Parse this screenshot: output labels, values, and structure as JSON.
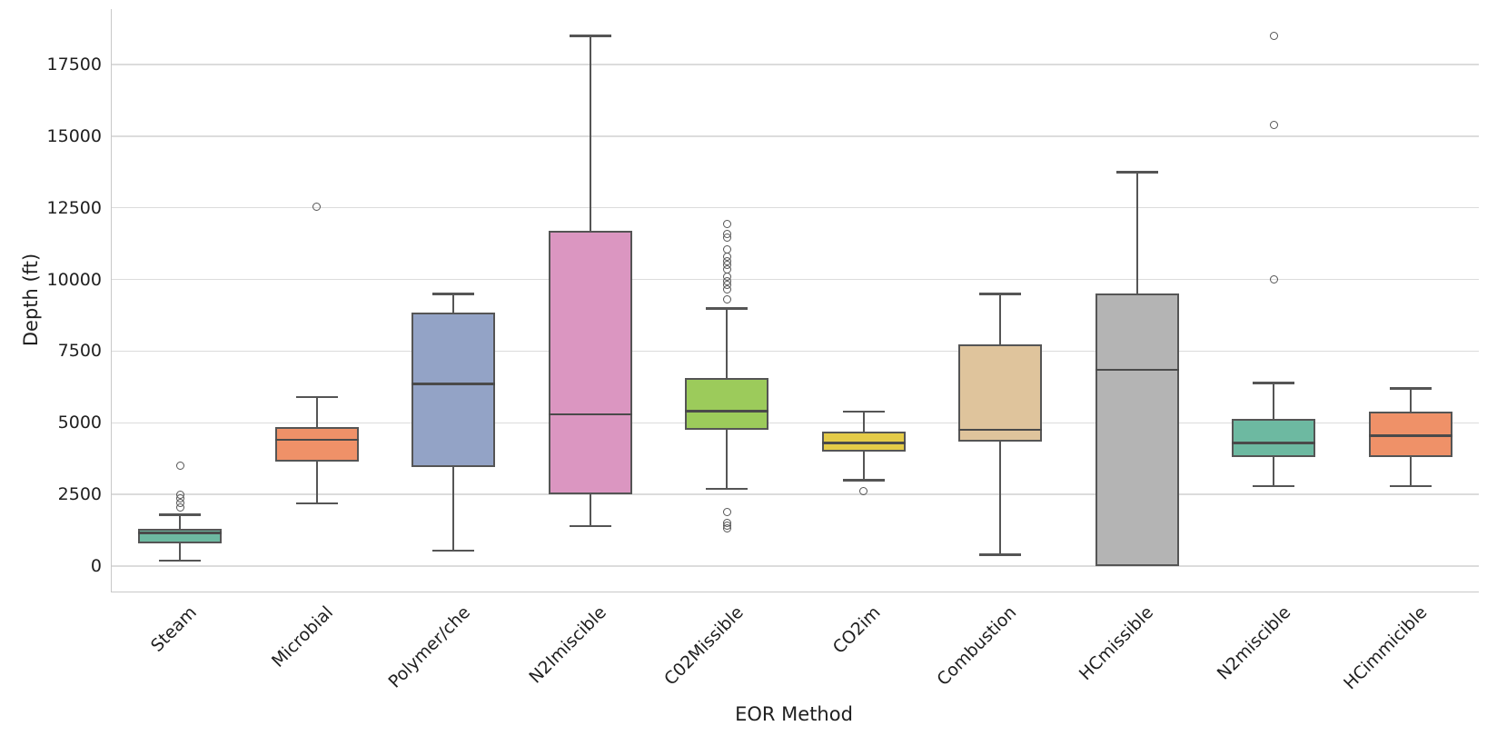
{
  "axes": {
    "xlabel": "EOR Method",
    "ylabel": "Depth (ft)"
  },
  "chart_data": {
    "type": "box",
    "title": "",
    "xlabel": "EOR Method",
    "ylabel": "Depth (ft)",
    "y_ticks": [
      0,
      2500,
      5000,
      7500,
      10000,
      12500,
      15000,
      17500
    ],
    "ylim": [
      -890,
      19430
    ],
    "grid": "horizontal",
    "legend": "none",
    "categories": [
      "Steam",
      "Microbial",
      "Polymer/che",
      "N2Imiscible",
      "C02Missible",
      "CO2im",
      "Combustion",
      "HCmissible",
      "N2miscible",
      "HCimmicible"
    ],
    "series": [
      {
        "name": "Steam",
        "color": "#6db9a1",
        "whisker_low": 200,
        "q1": 800,
        "median": 1150,
        "q3": 1300,
        "whisker_high": 1800,
        "outliers": [
          2050,
          2200,
          2350,
          2500,
          3500
        ]
      },
      {
        "name": "Microbial",
        "color": "#ef9168",
        "whisker_low": 2200,
        "q1": 3650,
        "median": 4400,
        "q3": 4850,
        "whisker_high": 5900,
        "outliers": [
          12550
        ]
      },
      {
        "name": "Polymer/che",
        "color": "#93a3c6",
        "whisker_low": 550,
        "q1": 3450,
        "median": 6350,
        "q3": 8850,
        "whisker_high": 9500,
        "outliers": []
      },
      {
        "name": "N2Imiscible",
        "color": "#db96c1",
        "whisker_low": 1400,
        "q1": 2500,
        "median": 5300,
        "q3": 11700,
        "whisker_high": 18500,
        "outliers": []
      },
      {
        "name": "C02Missible",
        "color": "#9ccb5b",
        "whisker_low": 2700,
        "q1": 4750,
        "median": 5400,
        "q3": 6550,
        "whisker_high": 9000,
        "outliers": [
          1300,
          1400,
          1520,
          1900,
          9300,
          9650,
          9800,
          9950,
          10100,
          10350,
          10500,
          10650,
          10800,
          11050,
          11450,
          11600,
          11950
        ]
      },
      {
        "name": "CO2im",
        "color": "#e4cb48",
        "whisker_low": 3000,
        "q1": 4000,
        "median": 4300,
        "q3": 4700,
        "whisker_high": 5400,
        "outliers": [
          2600
        ]
      },
      {
        "name": "Combustion",
        "color": "#dfc49c",
        "whisker_low": 400,
        "q1": 4350,
        "median": 4750,
        "q3": 7750,
        "whisker_high": 9500,
        "outliers": []
      },
      {
        "name": "HCmissible",
        "color": "#b4b4b4",
        "whisker_low": 0,
        "q1": 0,
        "median": 6850,
        "q3": 9500,
        "whisker_high": 13750,
        "outliers": []
      },
      {
        "name": "N2miscible",
        "color": "#6db9a1",
        "whisker_low": 2800,
        "q1": 3800,
        "median": 4300,
        "q3": 5150,
        "whisker_high": 6400,
        "outliers": [
          10000,
          15400,
          18500
        ]
      },
      {
        "name": "HCimmicible",
        "color": "#ef9168",
        "whisker_low": 2800,
        "q1": 3800,
        "median": 4550,
        "q3": 5400,
        "whisker_high": 6200,
        "outliers": []
      }
    ]
  },
  "style_colors": {
    "box_edge": "#555555",
    "median_line": "#4a4a4a",
    "gridline": "#dcdcdc",
    "spine": "#c8c8c8",
    "text": "#1f1f1f",
    "background": "#ffffff"
  }
}
